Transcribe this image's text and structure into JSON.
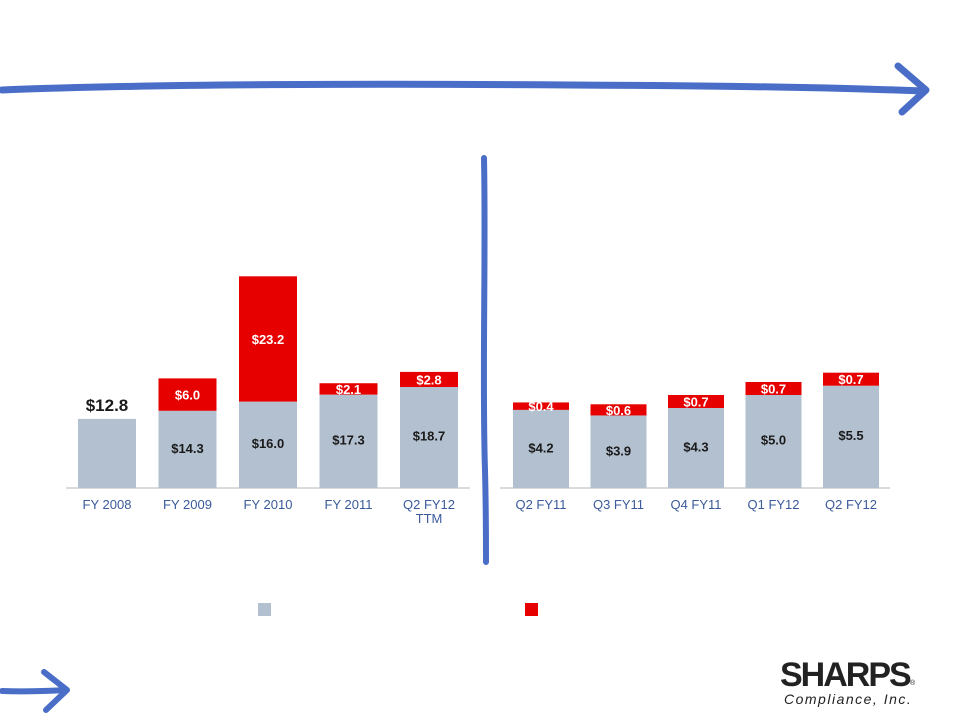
{
  "colors": {
    "base": "#b3c0d0",
    "increment": "#e60000",
    "marker": "#4a6ec7",
    "axis": "#cfcfcf",
    "text": "#1a1a1a",
    "tick": "#3a5a9c"
  },
  "chart_data": [
    {
      "type": "bar",
      "stacked": true,
      "categories": [
        "FY 2008",
        "FY 2009",
        "FY 2010",
        "FY 2011",
        "Q2 FY12\nTTM"
      ],
      "series": [
        {
          "values": [
            12.8,
            14.3,
            16.0,
            17.3,
            18.7
          ],
          "color": "#b3c0d0"
        },
        {
          "values": [
            null,
            6.0,
            23.2,
            2.1,
            2.8
          ],
          "color": "#e60000"
        }
      ],
      "labels_base": [
        "$12.8",
        "$14.3",
        "$16.0",
        "$17.3",
        "$18.7"
      ],
      "labels_increment": [
        "",
        "$6.0",
        "$23.2",
        "$2.1",
        "$2.8"
      ]
    },
    {
      "type": "bar",
      "stacked": true,
      "categories": [
        "Q2 FY11",
        "Q3 FY11",
        "Q4 FY11",
        "Q1 FY12",
        "Q2 FY12"
      ],
      "series": [
        {
          "values": [
            4.2,
            3.9,
            4.3,
            5.0,
            5.5
          ],
          "color": "#b3c0d0"
        },
        {
          "values": [
            0.4,
            0.6,
            0.7,
            0.7,
            0.7
          ],
          "color": "#e60000"
        }
      ],
      "labels_base": [
        "$4.2",
        "$3.9",
        "$4.3",
        "$5.0",
        "$5.5"
      ],
      "labels_increment": [
        "$0.4",
        "$0.6",
        "$0.7",
        "$0.7",
        "$0.7"
      ]
    }
  ],
  "logo": {
    "name": "SHARPS",
    "registered": "®",
    "subtitle": "Compliance, Inc."
  }
}
